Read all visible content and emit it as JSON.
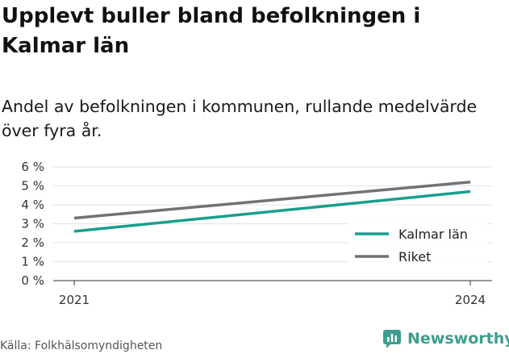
{
  "title": "Upplevt buller bland befolkningen i Kalmar län",
  "subtitle": "Andel av befolkningen i kommunen, rullande medelvärde över fyra år.",
  "source": "Källa: Folkhälsomyndigheten",
  "brand": {
    "name": "Newsworthy",
    "icon": "newsworthy-logo-icon",
    "color": "#3c9e8f"
  },
  "chart_data": {
    "type": "line",
    "x": [
      "2021",
      "2024"
    ],
    "ylim": [
      0,
      6
    ],
    "y_ticks": [
      "0 %",
      "1 %",
      "2 %",
      "3 %",
      "4 %",
      "5 %",
      "6 %"
    ],
    "grid": true,
    "legend_position": "bottom-right",
    "series": [
      {
        "name": "Kalmar län",
        "values": [
          2.6,
          4.7
        ],
        "color": "#1a9e8f"
      },
      {
        "name": "Riket",
        "values": [
          3.3,
          5.2
        ],
        "color": "#737077"
      }
    ]
  }
}
